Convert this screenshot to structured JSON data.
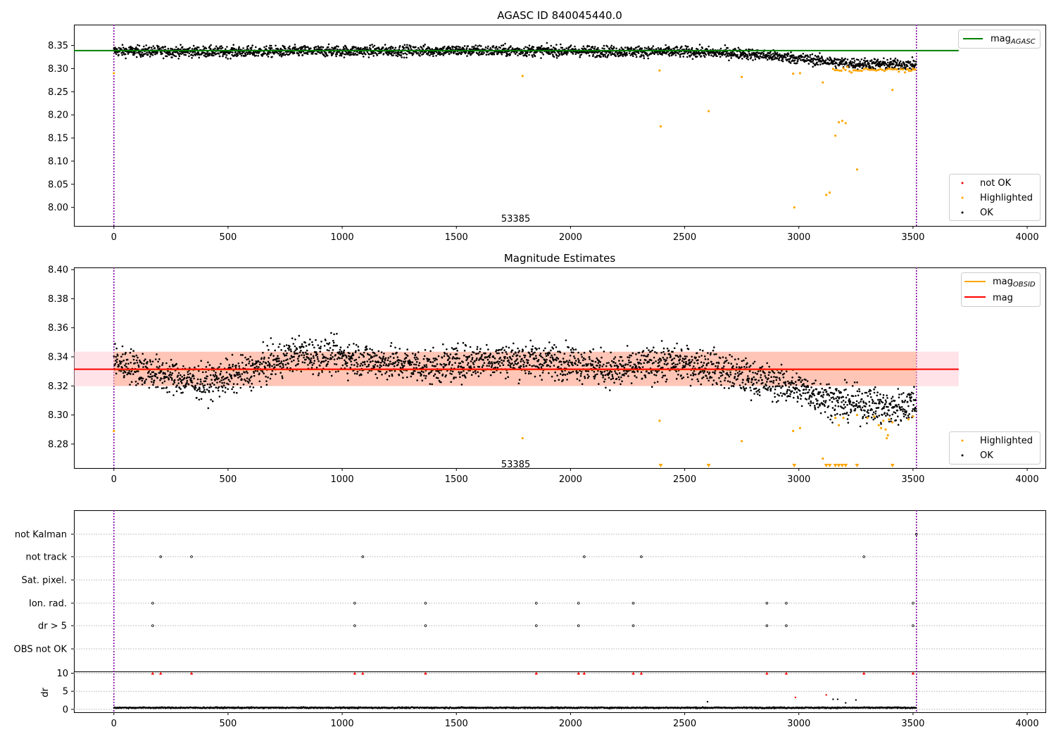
{
  "chart_data": [
    {
      "type": "scatter",
      "title": "AGASC ID 840045440.0",
      "xlim": [
        -175,
        4080
      ],
      "ylim": [
        7.96,
        8.395
      ],
      "xticks": [
        0,
        500,
        1000,
        1500,
        2000,
        2500,
        3000,
        3500,
        4000
      ],
      "yticks": [
        8.0,
        8.05,
        8.1,
        8.15,
        8.2,
        8.25,
        8.3,
        8.35
      ],
      "annotation": {
        "text": "53385",
        "x": 1760,
        "y": 7.975
      },
      "vlines": [
        0,
        3515
      ],
      "ref_line": {
        "name": "mag_AGASC",
        "legend_label": "mag",
        "legend_sub": "AGASC",
        "y": 8.339,
        "x_end": 3700,
        "color": "#008000"
      },
      "series": [
        {
          "name": "not OK",
          "color": "#ff0000",
          "points": []
        },
        {
          "name": "Highlighted",
          "color": "#ffa500",
          "points": [
            [
              0,
              8.29
            ],
            [
              1790,
              8.284
            ],
            [
              2390,
              8.296
            ],
            [
              2395,
              8.175
            ],
            [
              2605,
              8.208
            ],
            [
              2750,
              8.282
            ],
            [
              2975,
              8.289
            ],
            [
              2980,
              8.0
            ],
            [
              3005,
              8.29
            ],
            [
              3105,
              8.27
            ],
            [
              3120,
              8.027
            ],
            [
              3135,
              8.032
            ],
            [
              3160,
              8.155
            ],
            [
              3175,
              8.184
            ],
            [
              3190,
              8.187
            ],
            [
              3205,
              8.182
            ],
            [
              3255,
              8.082
            ],
            [
              3410,
              8.254
            ],
            [
              3480,
              8.298
            ],
            [
              3500,
              8.3
            ]
          ]
        },
        {
          "name": "OK",
          "color": "#000000",
          "trend": [
            [
              0,
              8.338
            ],
            [
              500,
              8.336
            ],
            [
              1000,
              8.338
            ],
            [
              1500,
              8.339
            ],
            [
              2000,
              8.338
            ],
            [
              2500,
              8.336
            ],
            [
              2750,
              8.333
            ],
            [
              3000,
              8.322
            ],
            [
              3200,
              8.312
            ],
            [
              3400,
              8.309
            ],
            [
              3515,
              8.309
            ]
          ],
          "spread": 0.006
        }
      ],
      "legends": [
        {
          "position": "upper right",
          "entries": [
            "mag_AGASC"
          ]
        },
        {
          "position": "lower right",
          "entries": [
            "not OK",
            "Highlighted",
            "OK"
          ]
        }
      ]
    },
    {
      "type": "scatter",
      "title": "Magnitude Estimates",
      "xlim": [
        -175,
        4080
      ],
      "ylim": [
        8.2635,
        8.4015
      ],
      "xticks": [
        0,
        500,
        1000,
        1500,
        2000,
        2500,
        3000,
        3500,
        4000
      ],
      "yticks": [
        8.28,
        8.3,
        8.32,
        8.34,
        8.36,
        8.38,
        8.4
      ],
      "annotation": {
        "text": "53385",
        "x": 1760,
        "y": 8.266
      },
      "vlines": [
        0,
        3515
      ],
      "bands": [
        {
          "name": "mag band",
          "y0": 8.3198,
          "y1": 8.3436,
          "x0": -175,
          "x1": 3700,
          "color": "#ffc0cb"
        },
        {
          "name": "mag_OBSID band",
          "y0": 8.32,
          "y1": 8.3435,
          "x0": 0,
          "x1": 3515,
          "color": "#ffa07a"
        }
      ],
      "lines": [
        {
          "name": "mag_OBSID",
          "legend_label": "mag",
          "legend_sub": "OBSID",
          "y": 8.3312,
          "x0": 0,
          "x1": 3515,
          "color": "#ffa500"
        },
        {
          "name": "mag",
          "legend_label": "mag",
          "y": 8.3315,
          "x0": -175,
          "x1": 3700,
          "color": "#ff0000"
        }
      ],
      "series": [
        {
          "name": "Highlighted",
          "color": "#ffa500",
          "points": [
            [
              0,
              8.289
            ],
            [
              1790,
              8.284
            ],
            [
              2390,
              8.296
            ],
            [
              2750,
              8.282
            ],
            [
              2975,
              8.289
            ],
            [
              3005,
              8.291
            ],
            [
              3105,
              8.27
            ],
            [
              3160,
              8.298
            ],
            [
              3175,
              8.293
            ],
            [
              3195,
              8.298
            ],
            [
              3255,
              8.3
            ],
            [
              3300,
              8.298
            ],
            [
              3330,
              8.299
            ],
            [
              3350,
              8.293
            ],
            [
              3360,
              8.291
            ],
            [
              3370,
              8.296
            ],
            [
              3380,
              8.29
            ],
            [
              3385,
              8.284
            ],
            [
              3390,
              8.286
            ],
            [
              3395,
              8.297
            ],
            [
              3410,
              8.295
            ],
            [
              3480,
              8.297
            ],
            [
              3500,
              8.299
            ]
          ],
          "offscale_x": [
            2395,
            2605,
            2980,
            3120,
            3135,
            3160,
            3175,
            3190,
            3205,
            3255,
            3410
          ]
        },
        {
          "name": "OK",
          "color": "#000000",
          "trend": [
            [
              0,
              8.337
            ],
            [
              200,
              8.328
            ],
            [
              400,
              8.322
            ],
            [
              600,
              8.33
            ],
            [
              800,
              8.342
            ],
            [
              1000,
              8.34
            ],
            [
              1200,
              8.336
            ],
            [
              1400,
              8.333
            ],
            [
              1600,
              8.338
            ],
            [
              1800,
              8.338
            ],
            [
              2000,
              8.337
            ],
            [
              2200,
              8.33
            ],
            [
              2400,
              8.336
            ],
            [
              2600,
              8.334
            ],
            [
              2750,
              8.327
            ],
            [
              2900,
              8.322
            ],
            [
              3000,
              8.318
            ],
            [
              3100,
              8.313
            ],
            [
              3200,
              8.308
            ],
            [
              3300,
              8.308
            ],
            [
              3400,
              8.304
            ],
            [
              3515,
              8.309
            ]
          ],
          "spread": 0.006
        }
      ],
      "legends": [
        {
          "position": "upper right",
          "entries": [
            "mag_OBSID",
            "mag"
          ]
        },
        {
          "position": "lower right",
          "entries": [
            "Highlighted",
            "OK"
          ]
        }
      ]
    },
    {
      "type": "scatter",
      "xlim": [
        -175,
        4080
      ],
      "xticks": [
        0,
        500,
        1000,
        1500,
        2000,
        2500,
        3000,
        3500,
        4000
      ],
      "vlines": [
        0,
        3515
      ],
      "flag_rows": [
        "not Kalman",
        "not track",
        "Sat. pixel.",
        "Ion. rad.",
        "dr > 5",
        "OBS not OK"
      ],
      "flags": {
        "not Kalman": [
          3515
        ],
        "not track": [
          205,
          340,
          1090,
          2060,
          2310,
          3285
        ],
        "Sat. pixel.": [],
        "Ion. rad.": [
          170,
          1055,
          1365,
          1850,
          2035,
          2275,
          2860,
          2945,
          3500
        ],
        "dr > 5": [
          170,
          1055,
          1365,
          1850,
          2035,
          2275,
          2860,
          2945,
          3500
        ],
        "OBS not OK": []
      },
      "dr_ylabel": "dr",
      "dr_ylim": [
        -0.8,
        10.3
      ],
      "dr_yticks": [
        0,
        5,
        10
      ],
      "dr_clipped_x": [
        170,
        205,
        340,
        1055,
        1090,
        1365,
        1850,
        2035,
        2060,
        2275,
        2310,
        2860,
        2945,
        3285,
        3500
      ],
      "dr_outliers": [
        [
          2600,
          2.1
        ],
        [
          2985,
          3.3
        ],
        [
          3120,
          4.0
        ],
        [
          3150,
          2.8
        ],
        [
          3170,
          2.8
        ],
        [
          3205,
          1.8
        ],
        [
          3250,
          2.6
        ]
      ],
      "dr_baseline": 0.45
    }
  ]
}
